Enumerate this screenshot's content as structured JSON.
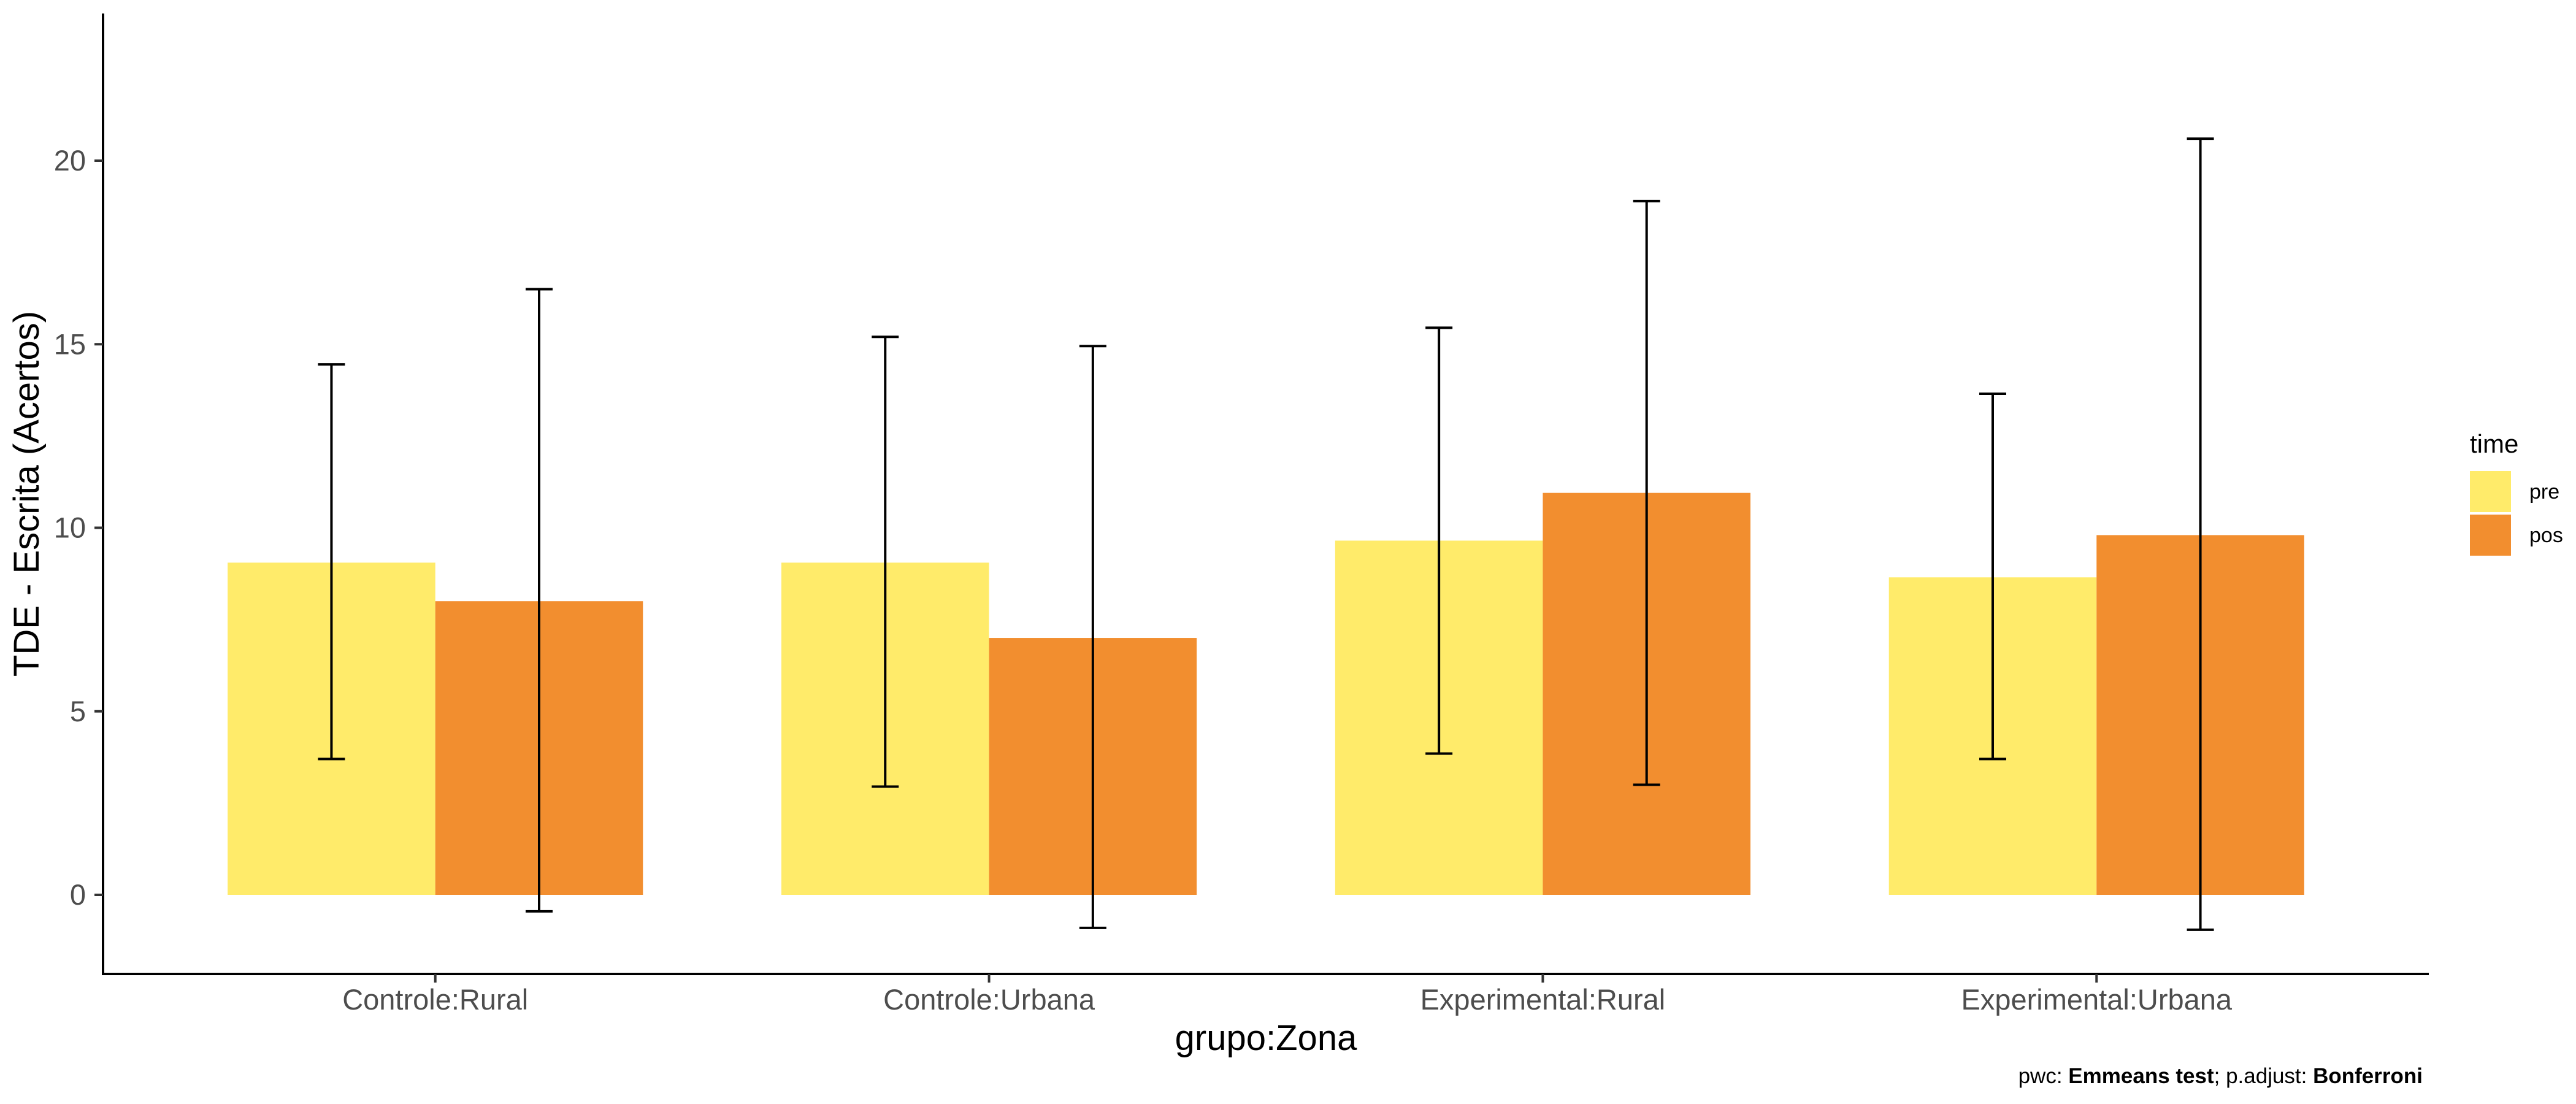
{
  "chart_data": {
    "type": "bar",
    "xlabel": "grupo:Zona",
    "ylabel": "TDE - Escrita (Acertos)",
    "categories": [
      "Controle:Rural",
      "Controle:Urbana",
      "Experimental:Rural",
      "Experimental:Urbana"
    ],
    "series": [
      {
        "name": "pre",
        "color": "#FFEB6A",
        "values": [
          9.05,
          9.05,
          9.65,
          8.65
        ],
        "error_low": [
          3.7,
          2.95,
          3.85,
          3.7
        ],
        "error_high": [
          14.45,
          15.2,
          15.45,
          13.65
        ]
      },
      {
        "name": "pos",
        "color": "#F28E2F",
        "values": [
          8.0,
          7.0,
          10.95,
          9.8
        ],
        "error_low": [
          -0.45,
          -0.9,
          3.0,
          -0.95
        ],
        "error_high": [
          16.5,
          14.95,
          18.9,
          20.6
        ]
      }
    ],
    "ylim": [
      -2.2,
      23.9
    ],
    "yticks": [
      "0",
      "5",
      "10",
      "15",
      "20"
    ],
    "ytick_values": [
      0,
      5,
      10,
      15,
      20
    ],
    "grid": false,
    "legend": {
      "title": "time",
      "position": "right"
    }
  },
  "caption": {
    "prefix": "pwc: ",
    "method": "Emmeans test",
    "middle": "; p.adjust: ",
    "adjust": "Bonferroni"
  }
}
